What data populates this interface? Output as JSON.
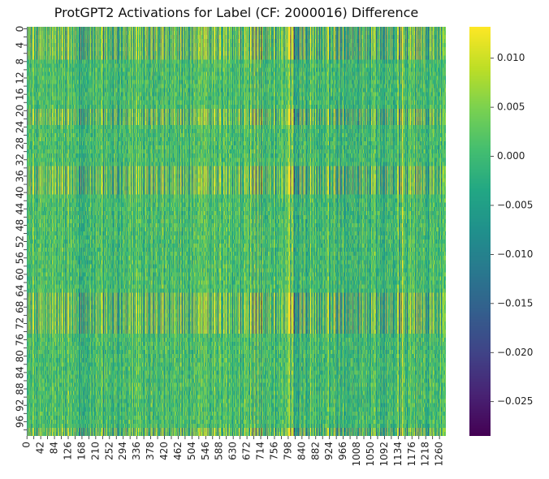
{
  "chart_data": {
    "type": "heatmap",
    "title": "ProtGPT2 Activations for Label (CF: 2000016) Difference",
    "xlabel": "",
    "ylabel": "",
    "rows": 100,
    "cols": 1280,
    "x_ticks": [
      "0",
      "42",
      "84",
      "126",
      "168",
      "210",
      "252",
      "294",
      "336",
      "378",
      "420",
      "462",
      "504",
      "546",
      "588",
      "630",
      "672",
      "714",
      "756",
      "798",
      "840",
      "882",
      "924",
      "966",
      "1008",
      "1050",
      "1092",
      "1134",
      "1176",
      "1218",
      "1260"
    ],
    "y_ticks": [
      "0",
      "4",
      "8",
      "12",
      "16",
      "20",
      "24",
      "28",
      "32",
      "36",
      "40",
      "44",
      "48",
      "52",
      "56",
      "60",
      "64",
      "68",
      "72",
      "76",
      "80",
      "84",
      "88",
      "92",
      "96"
    ],
    "colorbar": {
      "colormap": "viridis",
      "vmin": -0.0285,
      "vmax": 0.0132,
      "ticks": [
        "0.010",
        "0.005",
        "0.000",
        "−0.005",
        "−0.010",
        "−0.015",
        "−0.020",
        "−0.025"
      ],
      "tick_values": [
        0.01,
        0.005,
        0.0,
        -0.005,
        -0.01,
        -0.015,
        -0.02,
        -0.025
      ]
    },
    "row_bands": [
      {
        "from": 0,
        "to": 7,
        "level": "high"
      },
      {
        "from": 8,
        "to": 19,
        "level": "mid"
      },
      {
        "from": 20,
        "to": 23,
        "level": "high"
      },
      {
        "from": 24,
        "to": 33,
        "level": "mid"
      },
      {
        "from": 34,
        "to": 40,
        "level": "high"
      },
      {
        "from": 41,
        "to": 64,
        "level": "mid"
      },
      {
        "from": 65,
        "to": 74,
        "level": "high"
      },
      {
        "from": 75,
        "to": 97,
        "level": "mid"
      },
      {
        "from": 98,
        "to": 99,
        "level": "high"
      }
    ]
  }
}
